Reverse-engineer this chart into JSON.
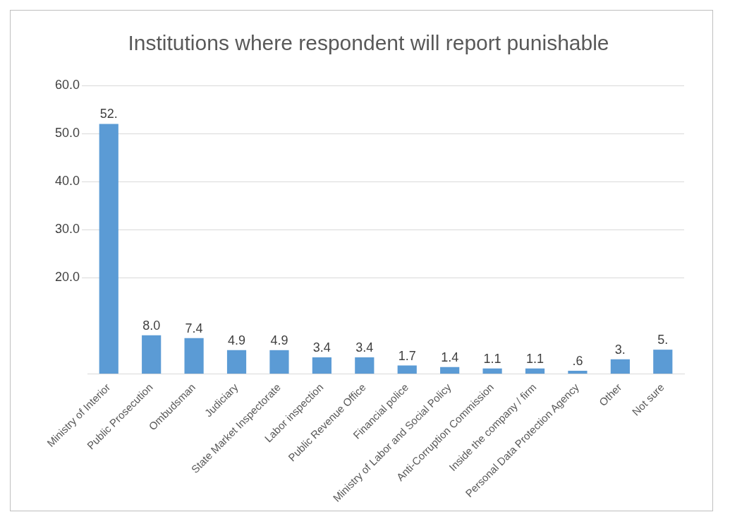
{
  "chart_data": {
    "type": "bar",
    "title": "Institutions where respondent will report punishable",
    "categories": [
      "Ministry of Interior",
      "Public Prosecution",
      "Ombudsman",
      "Judiciary",
      "State Market Inspectorate",
      "Labor inspection",
      "Public Revenue Office",
      "Financial police",
      "Ministry of Labor and Social Policy",
      "Anti-Corruption Commission",
      "Inside the company / firm",
      "Personal Data Protection Agency",
      "Other",
      "Not sure"
    ],
    "values": [
      52,
      8.0,
      7.4,
      4.9,
      4.9,
      3.4,
      3.4,
      1.7,
      1.4,
      1.1,
      1.1,
      0.6,
      3,
      5
    ],
    "value_labels": [
      "52.",
      "8.0",
      "7.4",
      "4.9",
      "4.9",
      "3.4",
      "3.4",
      "1.7",
      "1.4",
      "1.1",
      "1.1",
      ".6",
      "3.",
      "5."
    ],
    "color": "#5b9bd5",
    "ylim": [
      0,
      60
    ],
    "yticks": [
      {
        "value": 20,
        "label": "20.0"
      },
      {
        "value": 30,
        "label": "30.0"
      },
      {
        "value": 40,
        "label": "40.0"
      },
      {
        "value": 50,
        "label": "50.0"
      },
      {
        "value": 60,
        "label": "60.0"
      }
    ],
    "grid": "y",
    "legend": false
  }
}
